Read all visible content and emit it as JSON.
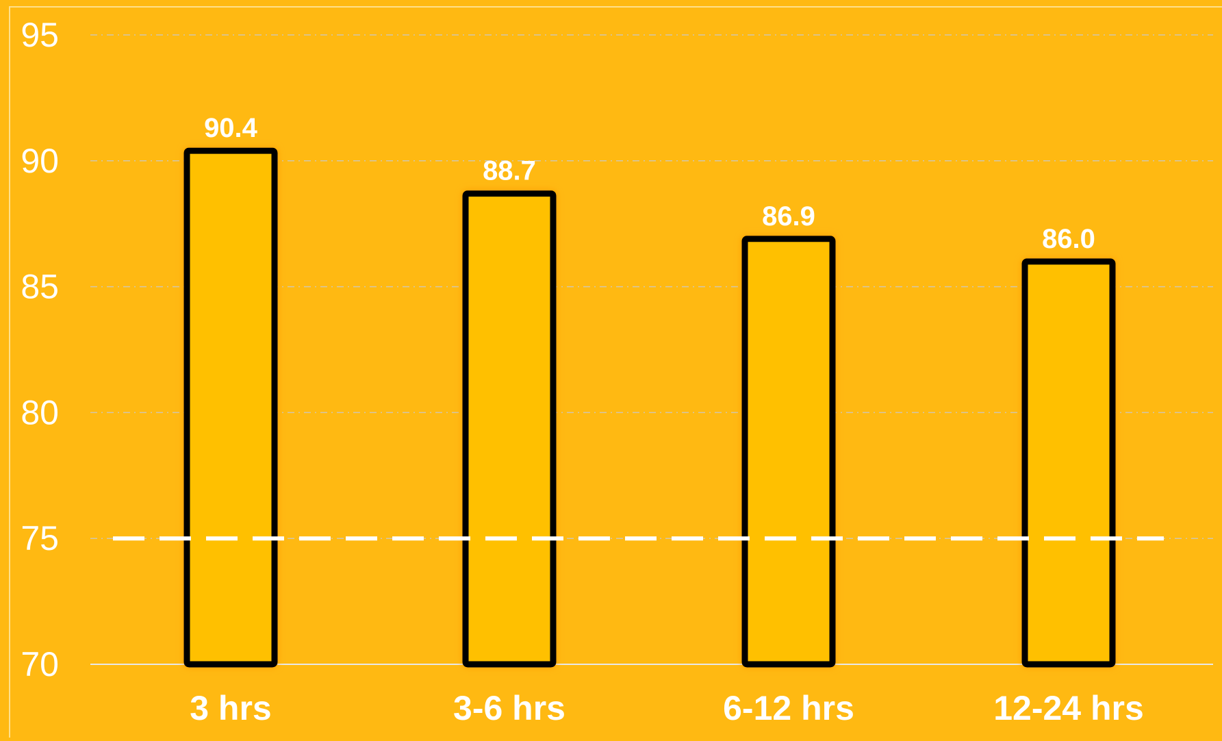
{
  "chart_data": {
    "type": "bar",
    "title": "",
    "xlabel": "",
    "ylabel": "",
    "categories": [
      "3 hrs",
      "3-6 hrs",
      "6-12 hrs",
      "12-24 hrs"
    ],
    "values": [
      90.4,
      88.7,
      86.9,
      86.0
    ],
    "value_labels": [
      "90.4",
      "88.7",
      "86.9",
      "86.0"
    ],
    "ylim": [
      70,
      95
    ],
    "yticks": [
      95,
      90,
      85,
      80,
      75,
      70
    ],
    "ytick_labels": [
      "95",
      "90",
      "85",
      "80",
      "75",
      "70"
    ],
    "reference_line": {
      "y": 75,
      "style": "dashed",
      "color": "#FFFFFF"
    },
    "grid": true,
    "legend": "none",
    "colors": {
      "background": "#FFB912",
      "bar_fill": "#FFC000",
      "bar_outline": "#000000",
      "bar_glow": "#FF9A10",
      "text": "#FFFFFF",
      "gridline": "#C9C9C9"
    }
  }
}
